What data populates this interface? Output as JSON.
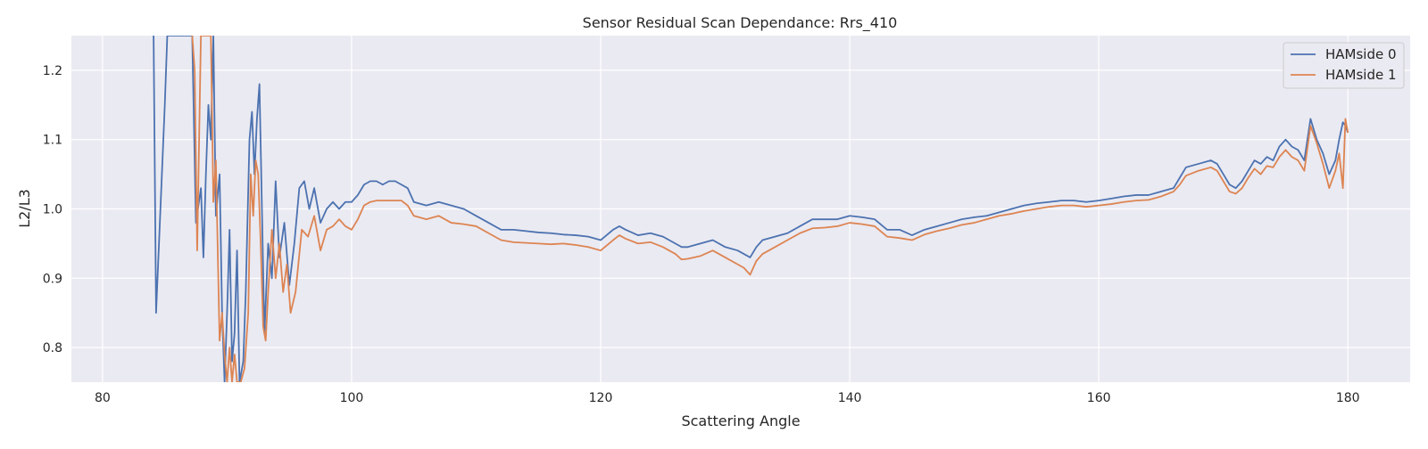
{
  "chart_data": {
    "type": "line",
    "title": "Sensor Residual Scan Dependance: Rrs_410",
    "xlabel": "Scattering Angle",
    "ylabel": "L2/L3",
    "xlim": [
      77.5,
      185.0
    ],
    "ylim": [
      0.75,
      1.25
    ],
    "xticks": [
      80,
      100,
      120,
      140,
      160,
      180
    ],
    "yticks": [
      0.8,
      0.9,
      1.0,
      1.1,
      1.2
    ],
    "xtick_labels": [
      "80",
      "100",
      "120",
      "140",
      "160",
      "180"
    ],
    "ytick_labels": [
      "0.8",
      "0.9",
      "1.0",
      "1.1",
      "1.2"
    ],
    "grid": true,
    "legend_position": "top-right",
    "colors": {
      "background": "#eaeaf2",
      "grid": "#ffffff"
    },
    "series": [
      {
        "name": "HAMside 0",
        "color": "#4c72b0",
        "points": [
          [
            84.1,
            1.25
          ],
          [
            84.3,
            0.85
          ],
          [
            85.0,
            1.15
          ],
          [
            85.2,
            1.25
          ],
          [
            87.2,
            1.25
          ],
          [
            87.5,
            0.98
          ],
          [
            87.9,
            1.03
          ],
          [
            88.1,
            0.93
          ],
          [
            88.3,
            1.05
          ],
          [
            88.5,
            1.15
          ],
          [
            88.7,
            1.1
          ],
          [
            88.9,
            1.25
          ],
          [
            89.1,
            0.99
          ],
          [
            89.4,
            1.05
          ],
          [
            89.6,
            0.85
          ],
          [
            89.8,
            0.75
          ],
          [
            90.0,
            0.85
          ],
          [
            90.2,
            0.97
          ],
          [
            90.4,
            0.78
          ],
          [
            90.6,
            0.82
          ],
          [
            90.8,
            0.94
          ],
          [
            91.0,
            0.75
          ],
          [
            91.3,
            0.78
          ],
          [
            91.5,
            0.88
          ],
          [
            91.8,
            1.1
          ],
          [
            92.0,
            1.14
          ],
          [
            92.2,
            1.05
          ],
          [
            92.4,
            1.13
          ],
          [
            92.6,
            1.18
          ],
          [
            92.8,
            1.0
          ],
          [
            93.0,
            0.82
          ],
          [
            93.3,
            0.95
          ],
          [
            93.6,
            0.9
          ],
          [
            93.9,
            1.04
          ],
          [
            94.2,
            0.93
          ],
          [
            94.6,
            0.98
          ],
          [
            95.0,
            0.89
          ],
          [
            95.4,
            0.95
          ],
          [
            95.8,
            1.03
          ],
          [
            96.2,
            1.04
          ],
          [
            96.6,
            1.0
          ],
          [
            97.0,
            1.03
          ],
          [
            97.5,
            0.98
          ],
          [
            98.0,
            1.0
          ],
          [
            98.5,
            1.01
          ],
          [
            99.0,
            1.0
          ],
          [
            99.5,
            1.01
          ],
          [
            100.0,
            1.01
          ],
          [
            100.5,
            1.02
          ],
          [
            101.0,
            1.035
          ],
          [
            101.5,
            1.04
          ],
          [
            102.0,
            1.04
          ],
          [
            102.5,
            1.035
          ],
          [
            103.0,
            1.04
          ],
          [
            103.5,
            1.04
          ],
          [
            104.0,
            1.035
          ],
          [
            104.5,
            1.03
          ],
          [
            105.0,
            1.01
          ],
          [
            106.0,
            1.005
          ],
          [
            107.0,
            1.01
          ],
          [
            108.0,
            1.005
          ],
          [
            109.0,
            1.0
          ],
          [
            110.0,
            0.99
          ],
          [
            111.0,
            0.98
          ],
          [
            112.0,
            0.97
          ],
          [
            113.0,
            0.97
          ],
          [
            114.0,
            0.968
          ],
          [
            115.0,
            0.966
          ],
          [
            116.0,
            0.965
          ],
          [
            117.0,
            0.963
          ],
          [
            118.0,
            0.962
          ],
          [
            119.0,
            0.96
          ],
          [
            120.0,
            0.955
          ],
          [
            121.0,
            0.97
          ],
          [
            121.5,
            0.975
          ],
          [
            122.0,
            0.97
          ],
          [
            123.0,
            0.962
          ],
          [
            124.0,
            0.965
          ],
          [
            125.0,
            0.96
          ],
          [
            126.0,
            0.95
          ],
          [
            126.5,
            0.945
          ],
          [
            127.0,
            0.945
          ],
          [
            128.0,
            0.95
          ],
          [
            129.0,
            0.955
          ],
          [
            130.0,
            0.945
          ],
          [
            131.0,
            0.94
          ],
          [
            131.5,
            0.935
          ],
          [
            132.0,
            0.93
          ],
          [
            132.5,
            0.945
          ],
          [
            133.0,
            0.955
          ],
          [
            134.0,
            0.96
          ],
          [
            135.0,
            0.965
          ],
          [
            136.0,
            0.975
          ],
          [
            137.0,
            0.985
          ],
          [
            138.0,
            0.985
          ],
          [
            139.0,
            0.985
          ],
          [
            140.0,
            0.99
          ],
          [
            141.0,
            0.988
          ],
          [
            142.0,
            0.985
          ],
          [
            143.0,
            0.97
          ],
          [
            144.0,
            0.97
          ],
          [
            145.0,
            0.962
          ],
          [
            146.0,
            0.97
          ],
          [
            147.0,
            0.975
          ],
          [
            148.0,
            0.98
          ],
          [
            149.0,
            0.985
          ],
          [
            150.0,
            0.988
          ],
          [
            151.0,
            0.99
          ],
          [
            152.0,
            0.995
          ],
          [
            153.0,
            1.0
          ],
          [
            154.0,
            1.005
          ],
          [
            155.0,
            1.008
          ],
          [
            156.0,
            1.01
          ],
          [
            157.0,
            1.012
          ],
          [
            158.0,
            1.012
          ],
          [
            159.0,
            1.01
          ],
          [
            160.0,
            1.012
          ],
          [
            161.0,
            1.015
          ],
          [
            162.0,
            1.018
          ],
          [
            163.0,
            1.02
          ],
          [
            164.0,
            1.02
          ],
          [
            165.0,
            1.025
          ],
          [
            166.0,
            1.03
          ],
          [
            166.5,
            1.045
          ],
          [
            167.0,
            1.06
          ],
          [
            168.0,
            1.065
          ],
          [
            169.0,
            1.07
          ],
          [
            169.5,
            1.065
          ],
          [
            170.0,
            1.05
          ],
          [
            170.5,
            1.035
          ],
          [
            171.0,
            1.03
          ],
          [
            171.5,
            1.04
          ],
          [
            172.0,
            1.055
          ],
          [
            172.5,
            1.07
          ],
          [
            173.0,
            1.065
          ],
          [
            173.5,
            1.075
          ],
          [
            174.0,
            1.07
          ],
          [
            174.5,
            1.09
          ],
          [
            175.0,
            1.1
          ],
          [
            175.5,
            1.09
          ],
          [
            176.0,
            1.085
          ],
          [
            176.5,
            1.07
          ],
          [
            177.0,
            1.13
          ],
          [
            177.5,
            1.1
          ],
          [
            178.0,
            1.08
          ],
          [
            178.5,
            1.05
          ],
          [
            179.0,
            1.07
          ],
          [
            179.3,
            1.1
          ],
          [
            179.6,
            1.125
          ],
          [
            179.8,
            1.12
          ],
          [
            180.0,
            1.11
          ]
        ]
      },
      {
        "name": "HAMside 1",
        "color": "#dd8452",
        "points": [
          [
            87.2,
            1.25
          ],
          [
            87.4,
            1.2
          ],
          [
            87.6,
            0.94
          ],
          [
            87.9,
            1.25
          ],
          [
            88.2,
            1.25
          ],
          [
            88.5,
            1.25
          ],
          [
            88.7,
            1.25
          ],
          [
            88.9,
            1.01
          ],
          [
            89.1,
            1.07
          ],
          [
            89.4,
            0.81
          ],
          [
            89.6,
            0.85
          ],
          [
            89.8,
            0.79
          ],
          [
            90.0,
            0.75
          ],
          [
            90.2,
            0.8
          ],
          [
            90.4,
            0.75
          ],
          [
            90.6,
            0.79
          ],
          [
            90.8,
            0.75
          ],
          [
            91.1,
            0.75
          ],
          [
            91.4,
            0.77
          ],
          [
            91.7,
            0.85
          ],
          [
            91.9,
            1.05
          ],
          [
            92.1,
            0.99
          ],
          [
            92.3,
            1.07
          ],
          [
            92.5,
            1.05
          ],
          [
            92.7,
            0.95
          ],
          [
            92.9,
            0.83
          ],
          [
            93.1,
            0.81
          ],
          [
            93.3,
            0.88
          ],
          [
            93.6,
            0.97
          ],
          [
            93.9,
            0.9
          ],
          [
            94.2,
            0.95
          ],
          [
            94.5,
            0.88
          ],
          [
            94.8,
            0.92
          ],
          [
            95.1,
            0.85
          ],
          [
            95.5,
            0.88
          ],
          [
            96.0,
            0.97
          ],
          [
            96.5,
            0.96
          ],
          [
            97.0,
            0.99
          ],
          [
            97.5,
            0.94
          ],
          [
            98.0,
            0.97
          ],
          [
            98.5,
            0.975
          ],
          [
            99.0,
            0.985
          ],
          [
            99.5,
            0.975
          ],
          [
            100.0,
            0.97
          ],
          [
            100.5,
            0.985
          ],
          [
            101.0,
            1.005
          ],
          [
            101.5,
            1.01
          ],
          [
            102.0,
            1.012
          ],
          [
            103.0,
            1.012
          ],
          [
            104.0,
            1.012
          ],
          [
            104.5,
            1.005
          ],
          [
            105.0,
            0.99
          ],
          [
            106.0,
            0.985
          ],
          [
            107.0,
            0.99
          ],
          [
            108.0,
            0.98
          ],
          [
            109.0,
            0.978
          ],
          [
            110.0,
            0.975
          ],
          [
            111.0,
            0.965
          ],
          [
            112.0,
            0.955
          ],
          [
            113.0,
            0.952
          ],
          [
            114.0,
            0.951
          ],
          [
            115.0,
            0.95
          ],
          [
            116.0,
            0.949
          ],
          [
            117.0,
            0.95
          ],
          [
            118.0,
            0.948
          ],
          [
            119.0,
            0.945
          ],
          [
            120.0,
            0.94
          ],
          [
            121.0,
            0.955
          ],
          [
            121.5,
            0.962
          ],
          [
            122.0,
            0.957
          ],
          [
            123.0,
            0.95
          ],
          [
            124.0,
            0.952
          ],
          [
            125.0,
            0.945
          ],
          [
            126.0,
            0.935
          ],
          [
            126.5,
            0.927
          ],
          [
            127.0,
            0.928
          ],
          [
            128.0,
            0.932
          ],
          [
            129.0,
            0.94
          ],
          [
            130.0,
            0.93
          ],
          [
            131.0,
            0.92
          ],
          [
            131.5,
            0.915
          ],
          [
            132.0,
            0.905
          ],
          [
            132.5,
            0.925
          ],
          [
            133.0,
            0.935
          ],
          [
            134.0,
            0.945
          ],
          [
            135.0,
            0.955
          ],
          [
            136.0,
            0.965
          ],
          [
            137.0,
            0.972
          ],
          [
            138.0,
            0.973
          ],
          [
            139.0,
            0.975
          ],
          [
            140.0,
            0.98
          ],
          [
            141.0,
            0.978
          ],
          [
            142.0,
            0.975
          ],
          [
            143.0,
            0.96
          ],
          [
            144.0,
            0.958
          ],
          [
            145.0,
            0.955
          ],
          [
            146.0,
            0.963
          ],
          [
            147.0,
            0.968
          ],
          [
            148.0,
            0.972
          ],
          [
            149.0,
            0.977
          ],
          [
            150.0,
            0.98
          ],
          [
            151.0,
            0.985
          ],
          [
            152.0,
            0.99
          ],
          [
            153.0,
            0.993
          ],
          [
            154.0,
            0.997
          ],
          [
            155.0,
            1.0
          ],
          [
            156.0,
            1.003
          ],
          [
            157.0,
            1.005
          ],
          [
            158.0,
            1.005
          ],
          [
            159.0,
            1.003
          ],
          [
            160.0,
            1.005
          ],
          [
            161.0,
            1.007
          ],
          [
            162.0,
            1.01
          ],
          [
            163.0,
            1.012
          ],
          [
            164.0,
            1.013
          ],
          [
            165.0,
            1.018
          ],
          [
            166.0,
            1.025
          ],
          [
            166.5,
            1.035
          ],
          [
            167.0,
            1.048
          ],
          [
            168.0,
            1.055
          ],
          [
            169.0,
            1.06
          ],
          [
            169.5,
            1.055
          ],
          [
            170.0,
            1.04
          ],
          [
            170.5,
            1.025
          ],
          [
            171.0,
            1.022
          ],
          [
            171.5,
            1.03
          ],
          [
            172.0,
            1.045
          ],
          [
            172.5,
            1.058
          ],
          [
            173.0,
            1.05
          ],
          [
            173.5,
            1.062
          ],
          [
            174.0,
            1.06
          ],
          [
            174.5,
            1.075
          ],
          [
            175.0,
            1.085
          ],
          [
            175.5,
            1.075
          ],
          [
            176.0,
            1.07
          ],
          [
            176.5,
            1.055
          ],
          [
            177.0,
            1.12
          ],
          [
            177.5,
            1.095
          ],
          [
            178.0,
            1.065
          ],
          [
            178.5,
            1.03
          ],
          [
            179.0,
            1.055
          ],
          [
            179.3,
            1.08
          ],
          [
            179.6,
            1.03
          ],
          [
            179.8,
            1.13
          ],
          [
            180.0,
            1.11
          ]
        ]
      }
    ]
  }
}
